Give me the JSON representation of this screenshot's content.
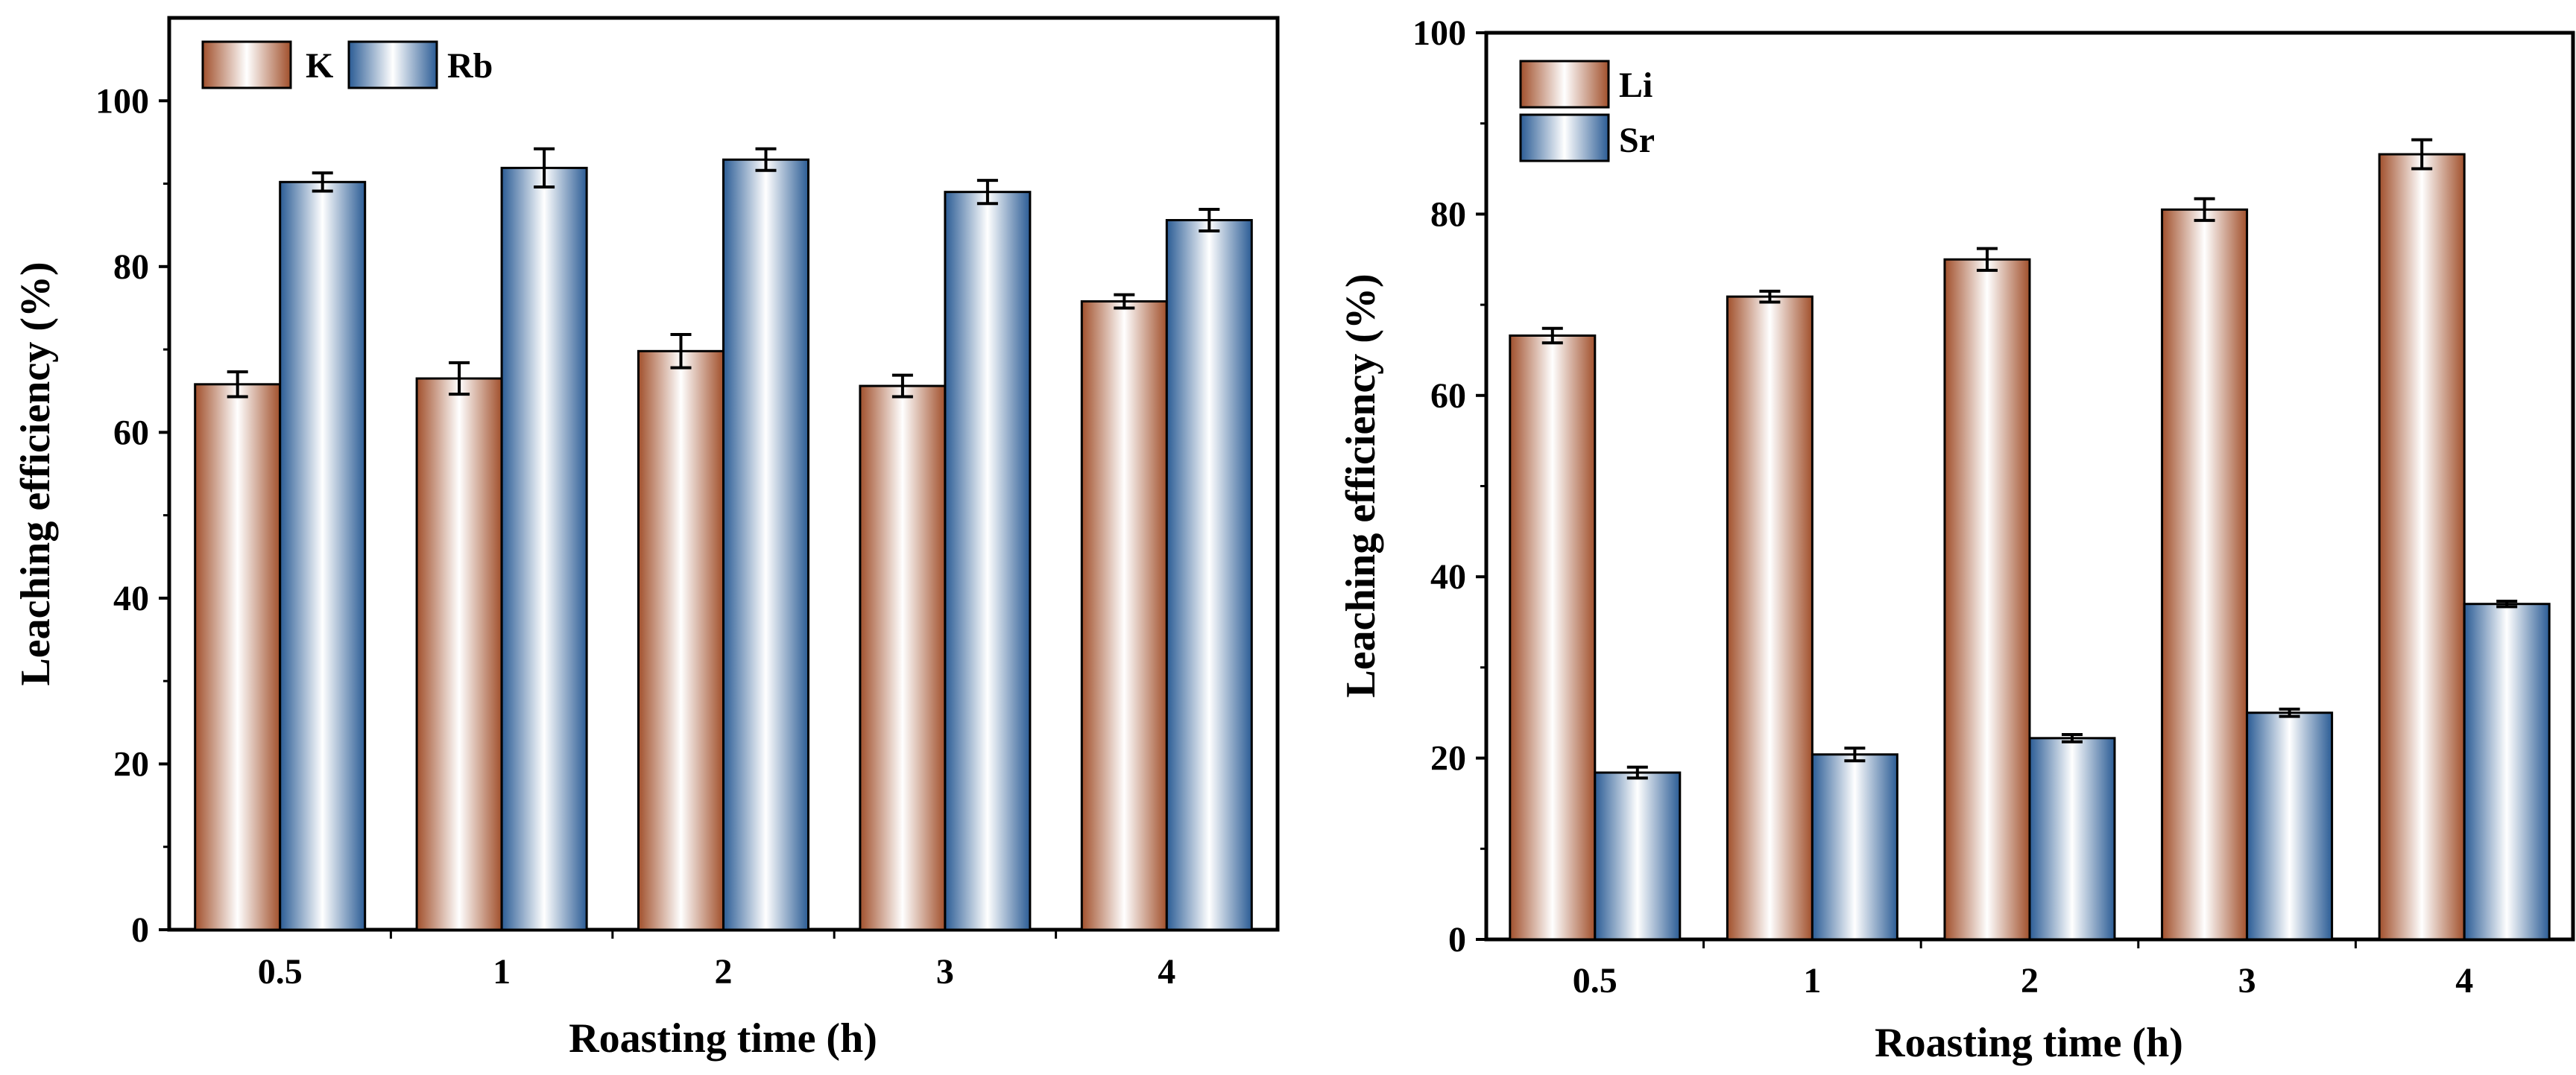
{
  "chart_data": [
    {
      "type": "bar",
      "title": "",
      "xlabel": "Roasting time (h)",
      "ylabel": "Leaching efficiency (%)",
      "categories": [
        "0.5",
        "1",
        "2",
        "3",
        "4"
      ],
      "ylim": [
        0,
        110
      ],
      "yticks": [
        "0",
        "20",
        "40",
        "60",
        "80",
        "100"
      ],
      "y_minor_step": 10,
      "grid": false,
      "legend_position": "top-left",
      "legend_layout": "horizontal",
      "series": [
        {
          "name": "K",
          "values": [
            65.8,
            66.5,
            69.8,
            65.6,
            75.8
          ],
          "errors": [
            1.5,
            1.9,
            2.0,
            1.3,
            0.8
          ],
          "gradient": [
            "#a1502c",
            "#ffffff"
          ]
        },
        {
          "name": "Rb",
          "values": [
            90.2,
            91.9,
            92.9,
            89.0,
            85.6
          ],
          "errors": [
            1.1,
            2.3,
            1.3,
            1.4,
            1.3
          ],
          "gradient": [
            "#2b5c95",
            "#ffffff"
          ]
        }
      ]
    },
    {
      "type": "bar",
      "title": "",
      "xlabel": "Roasting time (h)",
      "ylabel": "Leaching efficiency (%)",
      "categories": [
        "0.5",
        "1",
        "2",
        "3",
        "4"
      ],
      "ylim": [
        0,
        100
      ],
      "yticks": [
        "0",
        "20",
        "40",
        "60",
        "80",
        "100"
      ],
      "y_minor_step": 10,
      "grid": false,
      "legend_position": "top-left",
      "legend_layout": "vertical",
      "series": [
        {
          "name": "Li",
          "values": [
            66.6,
            70.9,
            75.0,
            80.5,
            86.6
          ],
          "errors": [
            0.8,
            0.6,
            1.2,
            1.2,
            1.6
          ],
          "gradient": [
            "#a1502c",
            "#ffffff"
          ]
        },
        {
          "name": "Sr",
          "values": [
            18.4,
            20.4,
            22.2,
            25.0,
            37.0
          ],
          "errors": [
            0.6,
            0.7,
            0.4,
            0.4,
            0.3
          ],
          "gradient": [
            "#2b5c95",
            "#ffffff"
          ]
        }
      ]
    }
  ]
}
